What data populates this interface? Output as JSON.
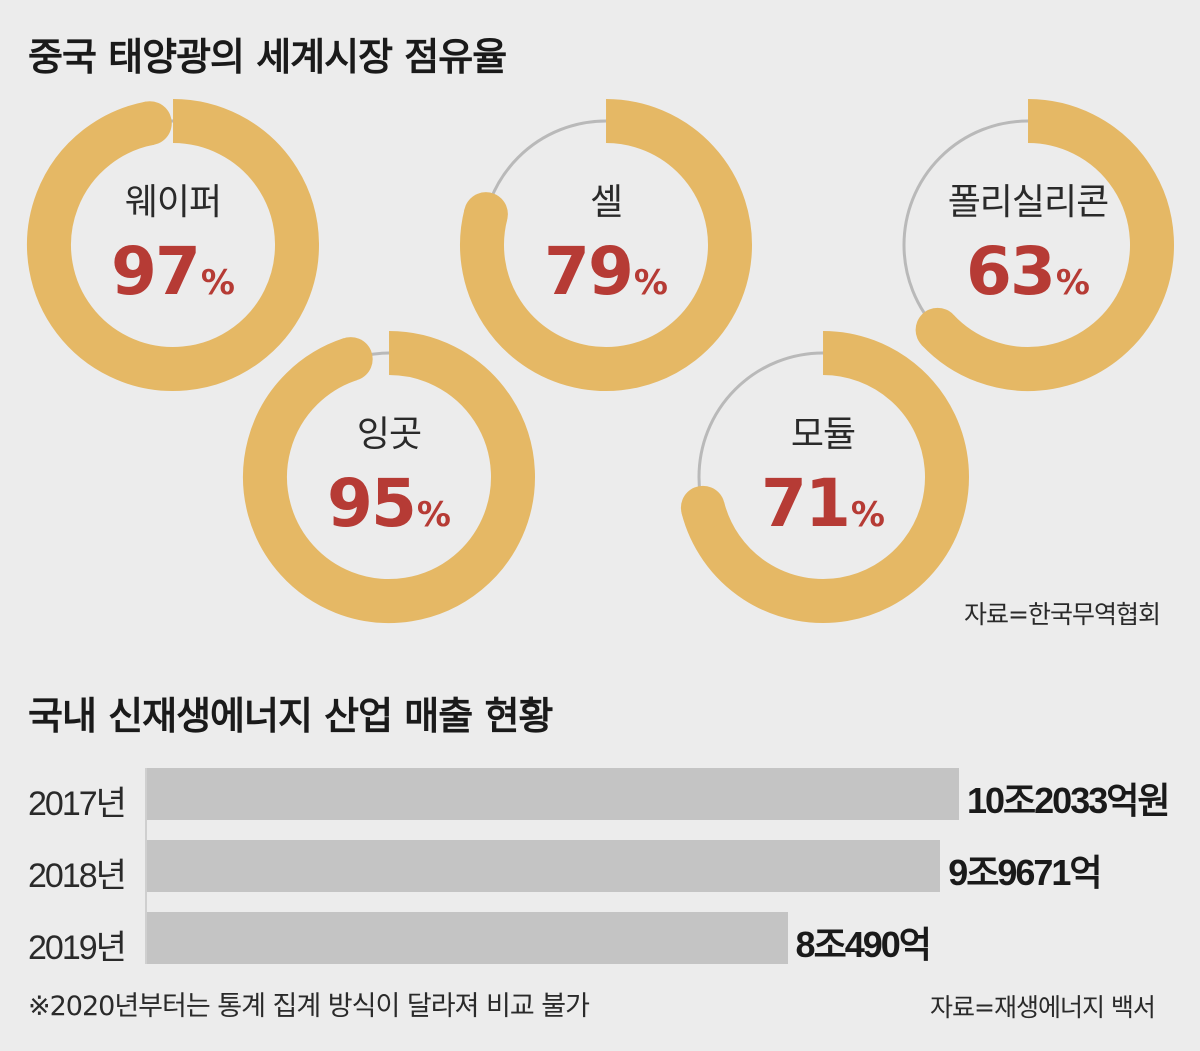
{
  "share_section": {
    "title": "중국 태양광의 세계시장 점유율",
    "source": "자료=한국무역협회"
  },
  "sales_section": {
    "title": "국내 신재생에너지 산업 매출 현황",
    "source": "자료=재생에너지 백서",
    "footnote": "※2020년부터는 통계 집계 방식이 달라져 비교 불가"
  },
  "colors": {
    "ring_fill": "#e5b865",
    "ring_track": "#b9b9b9",
    "percent_text": "#b63b35",
    "bar": "#c4c4c4",
    "background": "#ececec"
  },
  "chart_data": [
    {
      "type": "pie",
      "subtype": "donut",
      "title": "중국 태양광의 세계시장 점유율",
      "unit": "%",
      "categories": [
        "웨이퍼",
        "셀",
        "폴리실리콘",
        "잉곳",
        "모듈"
      ],
      "values": [
        97,
        79,
        63,
        95,
        71
      ],
      "value_labels": [
        "97",
        "79",
        "63",
        "95",
        "71"
      ],
      "source": "자료=한국무역협회"
    },
    {
      "type": "bar",
      "orientation": "horizontal",
      "title": "국내 신재생에너지 산업 매출 현황",
      "categories": [
        "2017년",
        "2018년",
        "2019년"
      ],
      "values": [
        102033,
        99671,
        80490
      ],
      "value_labels": [
        "10조2033억원",
        "9조9671억",
        "8조490억"
      ],
      "unit": "억원",
      "xlim": [
        0,
        102033
      ],
      "source": "자료=재생에너지 백서",
      "footnote": "※2020년부터는 통계 집계 방식이 달라져 비교 불가"
    }
  ]
}
